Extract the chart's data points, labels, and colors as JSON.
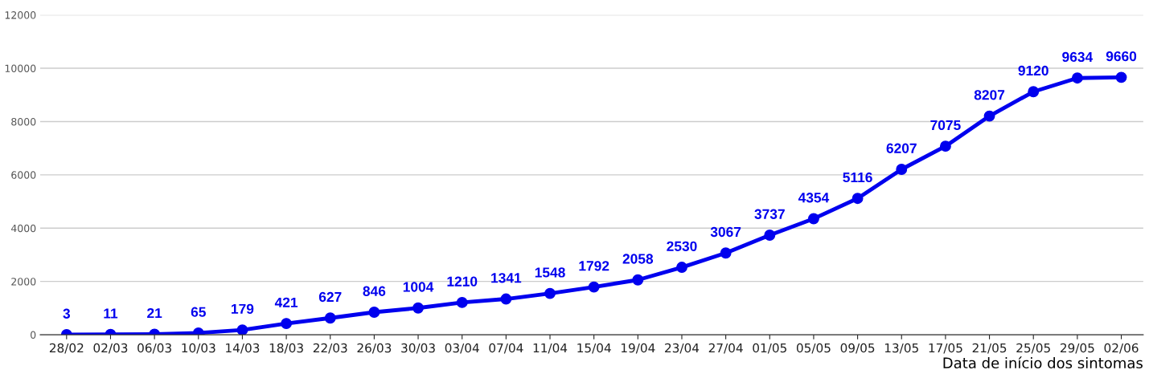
{
  "chart_data": {
    "type": "line",
    "xlabel": "Data de início dos sintomas",
    "categories": [
      "28/02",
      "02/03",
      "06/03",
      "10/03",
      "14/03",
      "18/03",
      "22/03",
      "26/03",
      "30/03",
      "03/04",
      "07/04",
      "11/04",
      "15/04",
      "19/04",
      "23/04",
      "27/04",
      "01/05",
      "05/05",
      "09/05",
      "13/05",
      "17/05",
      "21/05",
      "25/05",
      "29/05",
      "02/06"
    ],
    "series": [
      {
        "color": "#0000ee",
        "values": [
          3,
          11,
          21,
          65,
          179,
          421,
          627,
          846,
          1004,
          1210,
          1341,
          1548,
          1792,
          2058,
          2530,
          3067,
          3737,
          4354,
          5116,
          6207,
          7075,
          8207,
          9120,
          9634,
          9660
        ]
      }
    ],
    "ylim": [
      0,
      12000
    ],
    "yticks": [
      0,
      2000,
      4000,
      6000,
      8000,
      10000,
      12000
    ],
    "grid": "y",
    "marker": "circle",
    "line_style": "solid",
    "data_labels": true
  }
}
